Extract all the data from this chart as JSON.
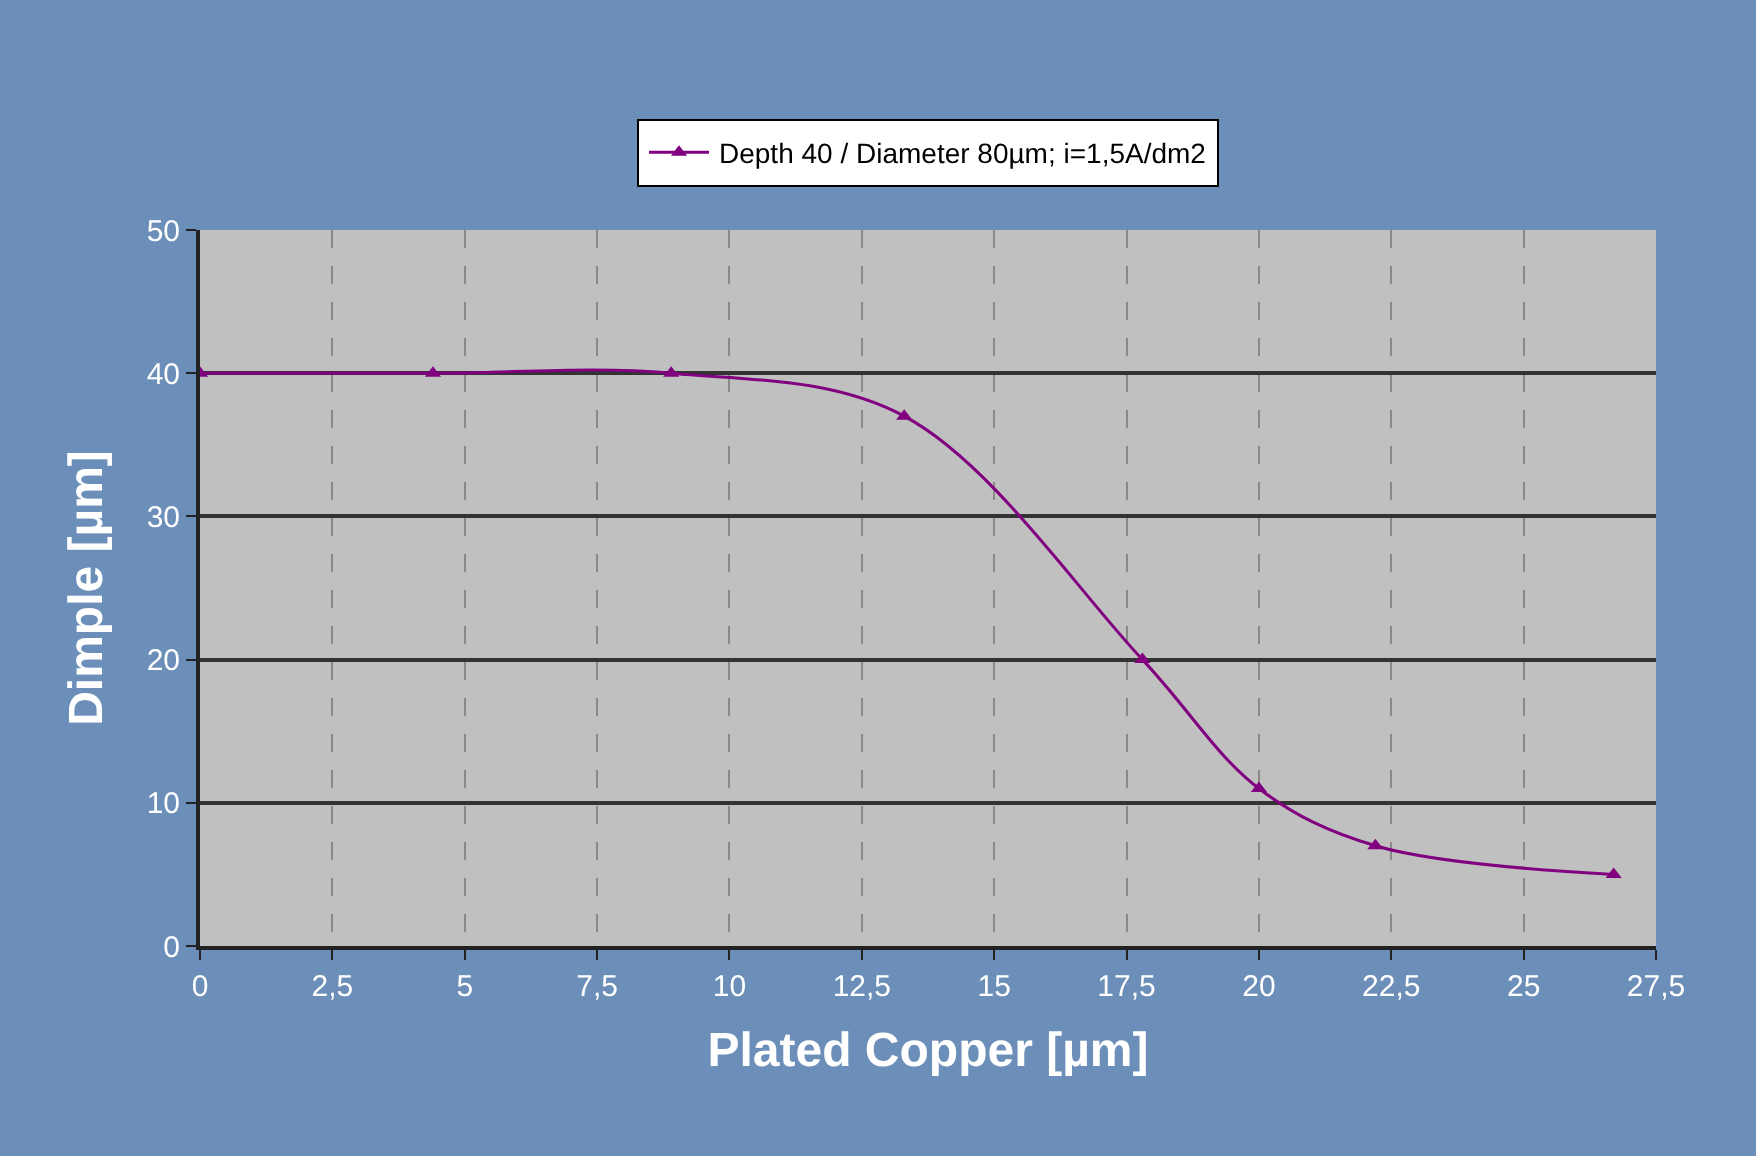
{
  "chart_data": {
    "type": "line",
    "xlabel": "Plated Copper [µm]",
    "ylabel": "Dimple [µm]",
    "x": [
      0,
      4.4,
      8.9,
      13.3,
      17.8,
      20,
      22.2,
      26.7
    ],
    "series": [
      {
        "name": "Depth 40 / Diameter 80µm; i=1,5A/dm2",
        "color": "#800080",
        "values": [
          40,
          40,
          40,
          37,
          20,
          11,
          7,
          5
        ]
      }
    ],
    "xlim": [
      0,
      27.5
    ],
    "xticks": [
      0,
      {
        "value": 2.5,
        "label": "2,5"
      },
      5,
      {
        "value": 7.5,
        "label": "7,5"
      },
      10,
      {
        "value": 12.5,
        "label": "12,5"
      },
      15,
      {
        "value": 17.5,
        "label": "17,5"
      },
      20,
      {
        "value": 22.5,
        "label": "22,5"
      },
      25,
      {
        "value": 27.5,
        "label": "27,5"
      }
    ],
    "ylim": [
      0,
      50
    ],
    "yticks": [
      0,
      10,
      20,
      30,
      40,
      50
    ],
    "grid": true,
    "legend": "top",
    "marker": "triangle",
    "line_style": "solid"
  }
}
